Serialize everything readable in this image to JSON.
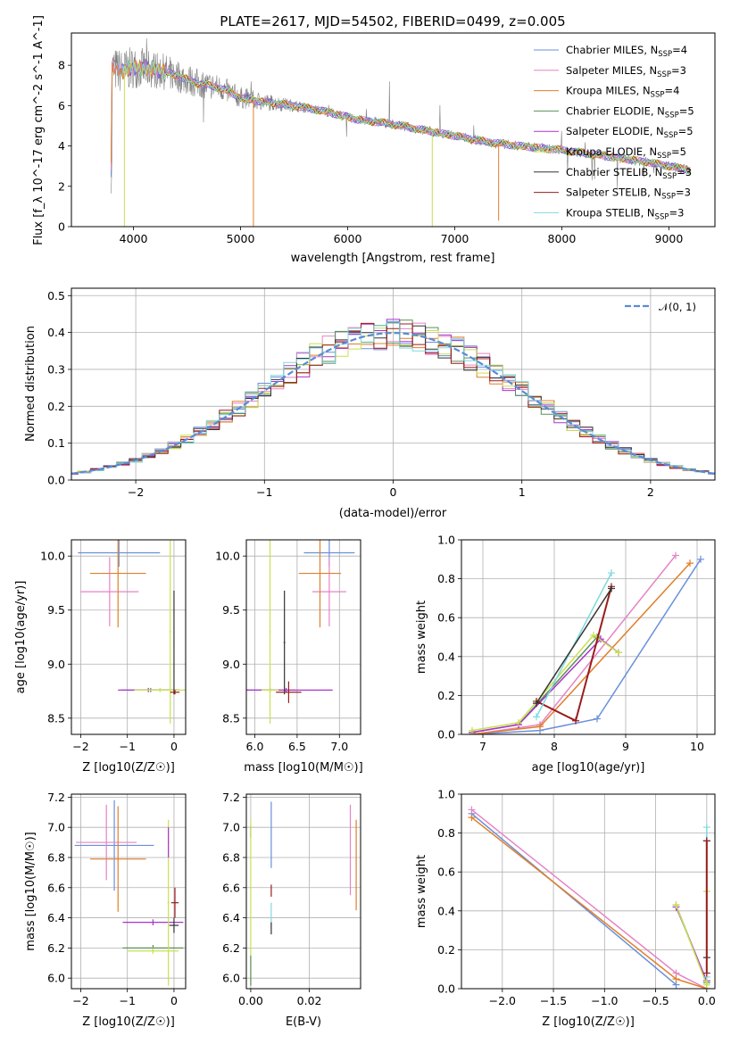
{
  "figure_title": "PLATE=2617, MJD=54502, FIBERID=0499, z=0.005",
  "colors": {
    "chabrier_miles": "#6a8fdc",
    "salpeter_miles": "#e584c4",
    "kroupa_miles": "#e07f2a",
    "chabrier_elodie": "#5a8f5a",
    "salpeter_elodie": "#aa33cc",
    "kroupa_elodie": "#c9e050",
    "chabrier_stelib": "#333333",
    "salpeter_stelib": "#9b1c1c",
    "kroupa_stelib": "#7fd9dd",
    "data": "#7f7f7f",
    "normal": "#5b8bd4",
    "grid": "#b0b0b0"
  },
  "chart_data": [
    {
      "id": "spectrum",
      "type": "line",
      "xlabel": "wavelength [Angstrom, rest frame]",
      "ylabel": "Flux [f_λ 10^-17 erg cm^-2 s^-1 A^-1]",
      "xlim": [
        3420,
        9430
      ],
      "ylim": [
        0,
        9.6
      ],
      "xticks": [
        4000,
        5000,
        6000,
        7000,
        8000,
        9000
      ],
      "yticks": [
        0,
        2,
        4,
        6,
        8
      ],
      "grid": false,
      "legend_position": "upper-right",
      "legend": [
        {
          "key": "chabrier_miles",
          "label": "Chabrier MILES, N",
          "sub": "SSP",
          "suffix": "=4"
        },
        {
          "key": "salpeter_miles",
          "label": "Salpeter MILES, N",
          "sub": "SSP",
          "suffix": "=3"
        },
        {
          "key": "kroupa_miles",
          "label": "Kroupa MILES, N",
          "sub": "SSP",
          "suffix": "=4"
        },
        {
          "key": "chabrier_elodie",
          "label": "Chabrier ELODIE, N",
          "sub": "SSP",
          "suffix": "=5"
        },
        {
          "key": "salpeter_elodie",
          "label": "Salpeter ELODIE, N",
          "sub": "SSP",
          "suffix": "=5"
        },
        {
          "key": "kroupa_elodie",
          "label": "Kroupa ELODIE, N",
          "sub": "SSP",
          "suffix": "=5"
        },
        {
          "key": "chabrier_stelib",
          "label": "Chabrier STELIB, N",
          "sub": "SSP",
          "suffix": "=3"
        },
        {
          "key": "salpeter_stelib",
          "label": "Salpeter STELIB, N",
          "sub": "SSP",
          "suffix": "=3"
        },
        {
          "key": "kroupa_stelib",
          "label": "Kroupa STELIB, N",
          "sub": "SSP",
          "suffix": "=3"
        }
      ],
      "continuum": {
        "x": [
          3800,
          3900,
          4000,
          4200,
          4400,
          4600,
          4800,
          5000,
          5200,
          5500,
          5800,
          6100,
          6400,
          6700,
          7000,
          7300,
          7600,
          8000,
          8400,
          8800,
          9200
        ],
        "y": [
          7.8,
          7.7,
          7.9,
          7.8,
          7.5,
          7.1,
          6.9,
          6.4,
          6.2,
          6.0,
          5.7,
          5.3,
          5.1,
          4.8,
          4.5,
          4.2,
          4.0,
          3.8,
          3.5,
          3.2,
          2.8
        ]
      },
      "drops": [
        {
          "key": "kroupa_elodie",
          "x": 3915,
          "y": 0
        },
        {
          "key": "kroupa_miles",
          "x": 5120,
          "y": 0
        },
        {
          "key": "kroupa_elodie",
          "x": 6790,
          "y": 0
        },
        {
          "key": "kroupa_miles",
          "x": 7410,
          "y": 0.3
        }
      ]
    },
    {
      "id": "residuals",
      "type": "line",
      "xlabel": "(data-model)/error",
      "ylabel": "Normed distribution",
      "xlim": [
        -2.5,
        2.5
      ],
      "ylim": [
        0,
        0.52
      ],
      "xticks": [
        -2,
        -1,
        0,
        1,
        2
      ],
      "yticks": [
        0.0,
        0.1,
        0.2,
        0.3,
        0.4,
        0.5
      ],
      "grid": true,
      "legend_position": "upper-right",
      "normal_label": "𝒩(0, 1)"
    },
    {
      "id": "z_age",
      "type": "scatter",
      "xlabel": "Z [log10(Z/Z☉)]",
      "ylabel": "age [log10(age/yr)]",
      "xlim": [
        -2.2,
        0.25
      ],
      "ylim": [
        8.35,
        10.15
      ],
      "xticks": [
        -2,
        -1,
        0
      ],
      "yticks": [
        8.5,
        9.0,
        9.5,
        10.0
      ],
      "grid": true,
      "points": [
        {
          "key": "chabrier_miles",
          "x": -1.18,
          "y": 10.03,
          "xerr": 0.88,
          "yerr": 0.13
        },
        {
          "key": "salpeter_miles",
          "x": -1.38,
          "y": 9.67,
          "xerr": 0.62,
          "yerr": 0.32
        },
        {
          "key": "kroupa_miles",
          "x": -1.2,
          "y": 9.84,
          "xerr": 0.6,
          "yerr": 0.5
        },
        {
          "key": "chabrier_elodie",
          "x": -0.5,
          "y": 8.76,
          "xerr": 0.62,
          "yerr": 0.02
        },
        {
          "key": "salpeter_elodie",
          "x": -0.55,
          "y": 8.76,
          "xerr": 0.65,
          "yerr": 0.02
        },
        {
          "key": "kroupa_elodie",
          "x": -0.3,
          "y": 8.76,
          "xerr": 0.55,
          "yerr": 0.02
        },
        {
          "key": "kroupa_elodie",
          "x": -0.08,
          "y": 9.3,
          "xerr": 0.02,
          "yerr": 0.85
        },
        {
          "key": "chabrier_stelib",
          "x": 0.0,
          "y": 9.2,
          "xerr": 0.01,
          "yerr": 0.48
        },
        {
          "key": "salpeter_stelib",
          "x": 0.02,
          "y": 8.74,
          "xerr": 0.1,
          "yerr": 0.02
        }
      ]
    },
    {
      "id": "mass_age",
      "type": "scatter",
      "xlabel": "mass [log10(M/M☉)]",
      "ylabel": "",
      "xlim": [
        5.9,
        7.25
      ],
      "ylim": [
        8.35,
        10.15
      ],
      "xticks": [
        6.0,
        6.5,
        7.0
      ],
      "yticks": [
        8.5,
        9.0,
        9.5,
        10.0
      ],
      "grid": true,
      "points": [
        {
          "key": "chabrier_miles",
          "x": 6.88,
          "y": 10.03,
          "xerr": 0.3,
          "yerr": 0.13
        },
        {
          "key": "salpeter_miles",
          "x": 6.88,
          "y": 9.67,
          "xerr": 0.2,
          "yerr": 0.32
        },
        {
          "key": "kroupa_miles",
          "x": 6.77,
          "y": 9.84,
          "xerr": 0.25,
          "yerr": 0.5
        },
        {
          "key": "chabrier_elodie",
          "x": 6.18,
          "y": 8.76,
          "xerr": 0.3,
          "yerr": 0.02
        },
        {
          "key": "salpeter_elodie",
          "x": 6.37,
          "y": 8.76,
          "xerr": 0.55,
          "yerr": 0.02
        },
        {
          "key": "kroupa_elodie",
          "x": 6.18,
          "y": 8.76,
          "xerr": 0.1,
          "yerr": 0.02
        },
        {
          "key": "kroupa_elodie",
          "x": 6.18,
          "y": 9.3,
          "xerr": 0.01,
          "yerr": 0.85
        },
        {
          "key": "chabrier_stelib",
          "x": 6.35,
          "y": 9.2,
          "xerr": 0.01,
          "yerr": 0.48
        },
        {
          "key": "salpeter_stelib",
          "x": 6.4,
          "y": 8.74,
          "xerr": 0.15,
          "yerr": 0.1
        }
      ]
    },
    {
      "id": "age_weight",
      "type": "line",
      "xlabel": "age [log10(age/yr)]",
      "ylabel": "mass weight",
      "xlim": [
        6.7,
        10.25
      ],
      "ylim": [
        0,
        1.0
      ],
      "xticks": [
        7,
        8,
        9,
        10
      ],
      "yticks": [
        0.0,
        0.2,
        0.4,
        0.6,
        0.8,
        1.0
      ],
      "grid": true,
      "series": [
        {
          "key": "chabrier_miles",
          "x": [
            6.85,
            7.8,
            8.6,
            10.05
          ],
          "y": [
            0.0,
            0.02,
            0.08,
            0.9
          ]
        },
        {
          "key": "salpeter_miles",
          "x": [
            6.85,
            7.8,
            9.7
          ],
          "y": [
            0.0,
            0.05,
            0.92
          ]
        },
        {
          "key": "kroupa_miles",
          "x": [
            6.85,
            7.8,
            9.9
          ],
          "y": [
            0.0,
            0.04,
            0.88
          ]
        },
        {
          "key": "chabrier_elodie",
          "x": [
            6.85,
            7.5,
            8.6,
            8.9
          ],
          "y": [
            0.01,
            0.05,
            0.5,
            0.42
          ]
        },
        {
          "key": "salpeter_elodie",
          "x": [
            6.85,
            7.5,
            8.65,
            8.9
          ],
          "y": [
            0.01,
            0.05,
            0.49,
            0.42
          ]
        },
        {
          "key": "kroupa_elodie",
          "x": [
            6.85,
            7.5,
            8.55,
            8.9
          ],
          "y": [
            0.02,
            0.06,
            0.51,
            0.42
          ]
        },
        {
          "key": "salpeter_stelib",
          "x": [
            7.75,
            8.3,
            8.8
          ],
          "y": [
            0.17,
            0.07,
            0.76
          ]
        },
        {
          "key": "kroupa_stelib",
          "x": [
            7.75,
            8.8
          ],
          "y": [
            0.09,
            0.83
          ]
        },
        {
          "key": "chabrier_stelib",
          "x": [
            7.75,
            8.8
          ],
          "y": [
            0.16,
            0.75
          ]
        }
      ]
    },
    {
      "id": "z_mass",
      "type": "scatter",
      "xlabel": "Z [log10(Z/Z☉)]",
      "ylabel": "mass [log10(M/M☉)]",
      "xlim": [
        -2.2,
        0.25
      ],
      "ylim": [
        5.93,
        7.22
      ],
      "xticks": [
        -2,
        -1,
        0
      ],
      "yticks": [
        6.0,
        6.2,
        6.4,
        6.6,
        6.8,
        7.0,
        7.2
      ],
      "grid": true,
      "points": [
        {
          "key": "chabrier_miles",
          "x": -1.28,
          "y": 6.88,
          "xerr": 0.85,
          "yerr": 0.3
        },
        {
          "key": "salpeter_miles",
          "x": -1.45,
          "y": 6.9,
          "xerr": 0.65,
          "yerr": 0.25
        },
        {
          "key": "kroupa_miles",
          "x": -1.2,
          "y": 6.79,
          "xerr": 0.6,
          "yerr": 0.35
        },
        {
          "key": "chabrier_elodie",
          "x": -0.45,
          "y": 6.2,
          "xerr": 0.65,
          "yerr": 0.02
        },
        {
          "key": "salpeter_elodie",
          "x": -0.45,
          "y": 6.37,
          "xerr": 0.65,
          "yerr": 0.02
        },
        {
          "key": "kroupa_elodie",
          "x": -0.45,
          "y": 6.18,
          "xerr": 0.55,
          "yerr": 0.02
        },
        {
          "key": "kroupa_elodie",
          "x": -0.12,
          "y": 6.5,
          "xerr": 0.02,
          "yerr": 0.55
        },
        {
          "key": "salpeter_elodie",
          "x": -0.12,
          "y": 6.9,
          "xerr": 0.01,
          "yerr": 0.1
        },
        {
          "key": "chabrier_stelib",
          "x": 0.0,
          "y": 6.35,
          "xerr": 0.1,
          "yerr": 0.05
        },
        {
          "key": "salpeter_stelib",
          "x": 0.02,
          "y": 6.5,
          "xerr": 0.08,
          "yerr": 0.1
        }
      ]
    },
    {
      "id": "ebv_mass",
      "type": "scatter",
      "xlabel": "E(B-V)",
      "ylabel": "",
      "xlim": [
        -0.0015,
        0.0375
      ],
      "ylim": [
        5.93,
        7.22
      ],
      "xticks": [
        0.0,
        0.02
      ],
      "yticks": [
        6.0,
        6.2,
        6.4,
        6.6,
        6.8,
        7.0,
        7.2
      ],
      "grid": true,
      "points": [
        {
          "key": "chabrier_miles",
          "x": 0.007,
          "y": 6.95,
          "xerr": 0.0,
          "yerr": 0.22
        },
        {
          "key": "salpeter_miles",
          "x": 0.034,
          "y": 6.85,
          "xerr": 0.0,
          "yerr": 0.3
        },
        {
          "key": "kroupa_miles",
          "x": 0.036,
          "y": 6.75,
          "xerr": 0.0,
          "yerr": 0.3
        },
        {
          "key": "salpeter_elodie",
          "x": 0.0,
          "y": 6.97,
          "xerr": 0.0,
          "yerr": 0.04
        },
        {
          "key": "kroupa_elodie",
          "x": 0.0,
          "y": 6.5,
          "xerr": 0.0,
          "yerr": 0.55
        },
        {
          "key": "chabrier_elodie",
          "x": 0.0,
          "y": 6.05,
          "xerr": 0.0,
          "yerr": 0.1
        },
        {
          "key": "kroupa_stelib",
          "x": 0.007,
          "y": 6.42,
          "xerr": 0.0,
          "yerr": 0.08
        },
        {
          "key": "salpeter_stelib",
          "x": 0.007,
          "y": 6.58,
          "xerr": 0.0,
          "yerr": 0.04
        },
        {
          "key": "chabrier_stelib",
          "x": 0.007,
          "y": 6.33,
          "xerr": 0.0,
          "yerr": 0.04
        }
      ]
    },
    {
      "id": "z_weight",
      "type": "line",
      "xlabel": "Z [log10(Z/Z☉)]",
      "ylabel": "mass weight",
      "xlim": [
        -2.4,
        0.08
      ],
      "ylim": [
        0,
        1.0
      ],
      "xticks": [
        -2.0,
        -1.5,
        -1.0,
        -0.5,
        0.0
      ],
      "yticks": [
        0.0,
        0.2,
        0.4,
        0.6,
        0.8,
        1.0
      ],
      "grid": true,
      "series": [
        {
          "key": "chabrier_miles",
          "x": [
            -2.3,
            -0.3
          ],
          "y": [
            0.9,
            0.02
          ]
        },
        {
          "key": "salpeter_miles",
          "x": [
            -2.3,
            -0.3,
            0.0
          ],
          "y": [
            0.92,
            0.08,
            0.0
          ]
        },
        {
          "key": "kroupa_miles",
          "x": [
            -2.3,
            -0.3,
            0.0
          ],
          "y": [
            0.88,
            0.05,
            0.0
          ]
        },
        {
          "key": "chabrier_elodie",
          "x": [
            -0.3,
            0.0
          ],
          "y": [
            0.43,
            0.03
          ]
        },
        {
          "key": "salpeter_elodie",
          "x": [
            -0.3,
            0.0
          ],
          "y": [
            0.42,
            0.04
          ]
        },
        {
          "key": "kroupa_elodie",
          "x": [
            -0.3,
            0.0,
            0.0
          ],
          "y": [
            0.43,
            0.02,
            0.5
          ]
        },
        {
          "key": "kroupa_stelib",
          "x": [
            0.0,
            0.0
          ],
          "y": [
            0.06,
            0.83
          ]
        },
        {
          "key": "chabrier_stelib",
          "x": [
            0.0,
            0.0
          ],
          "y": [
            0.16,
            0.76
          ]
        },
        {
          "key": "salpeter_stelib",
          "x": [
            0.0,
            0.0
          ],
          "y": [
            0.08,
            0.76
          ]
        }
      ]
    }
  ]
}
